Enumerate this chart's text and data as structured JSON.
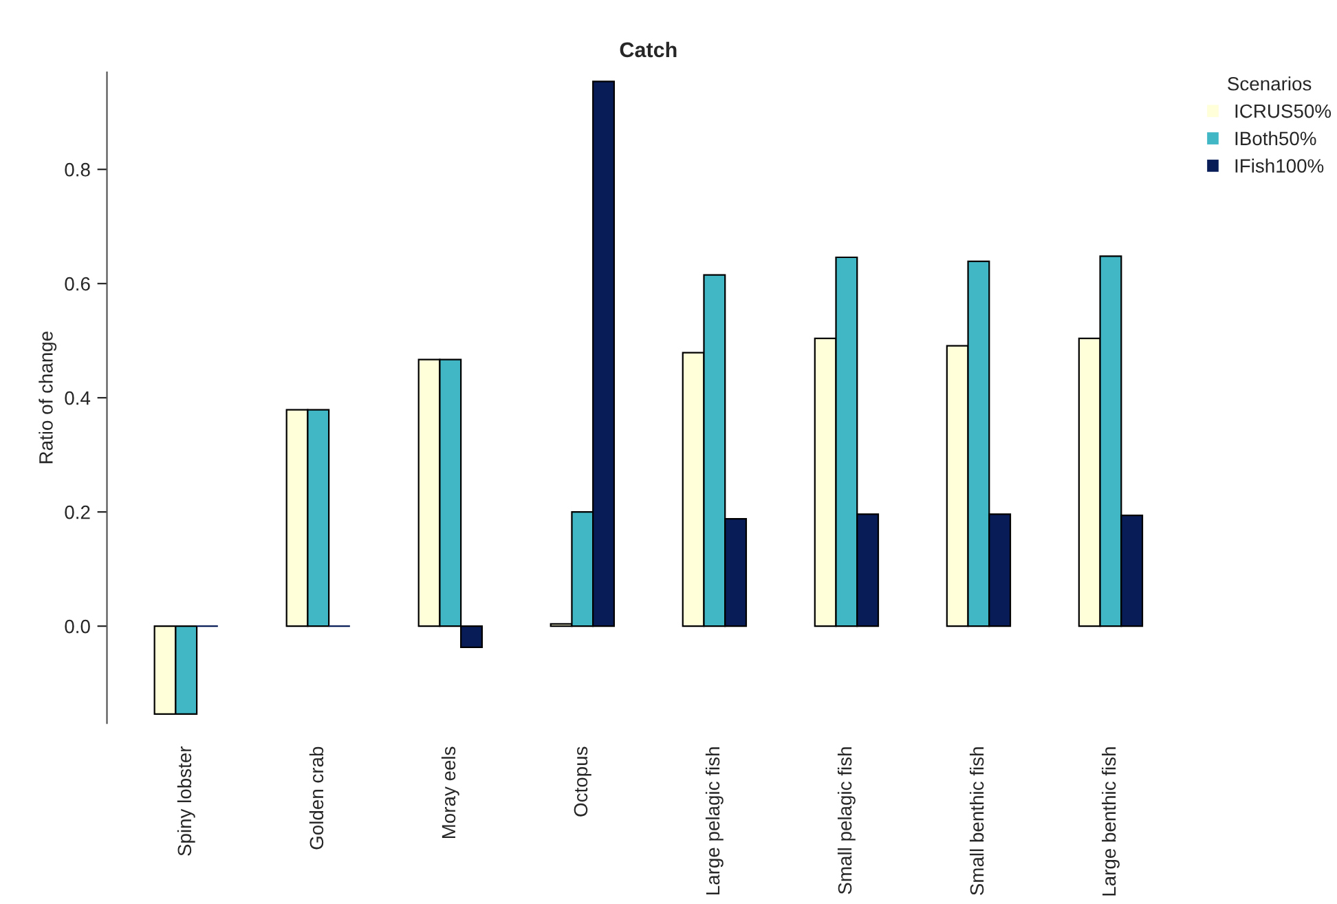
{
  "chart_data": {
    "type": "bar",
    "title": "Catch",
    "ylabel": "Ratio of change",
    "legend_title": "Scenarios",
    "categories": [
      "Spiny lobster",
      "Golden crab",
      "Moray eels",
      "Octopus",
      "Large pelagic fish",
      "Small pelagic fish",
      "Small benthic fish",
      "Large benthic fish"
    ],
    "series": [
      {
        "name": "ICRUS50%",
        "color": "#ffffd9",
        "values": [
          -0.154,
          0.379,
          0.467,
          0.004,
          0.479,
          0.504,
          0.491,
          0.504
        ]
      },
      {
        "name": "IBoth50%",
        "color": "#41b6c4",
        "values": [
          -0.154,
          0.379,
          0.467,
          0.2,
          0.615,
          0.646,
          0.639,
          0.648
        ]
      },
      {
        "name": "IFish100%",
        "color": "#081d58",
        "values": [
          0,
          0,
          -0.037,
          0.954,
          0.188,
          0.196,
          0.196,
          0.194
        ]
      }
    ],
    "ylim": [
      -0.17,
      0.97
    ],
    "yticks": [
      {
        "value": 0,
        "label": "0.0"
      },
      {
        "value": 0.2,
        "label": "0.2"
      },
      {
        "value": 0.4,
        "label": "0.4"
      },
      {
        "value": 0.6,
        "label": "0.6"
      },
      {
        "value": 0.8,
        "label": "0.8"
      }
    ],
    "grid": false,
    "legend": "top right"
  }
}
